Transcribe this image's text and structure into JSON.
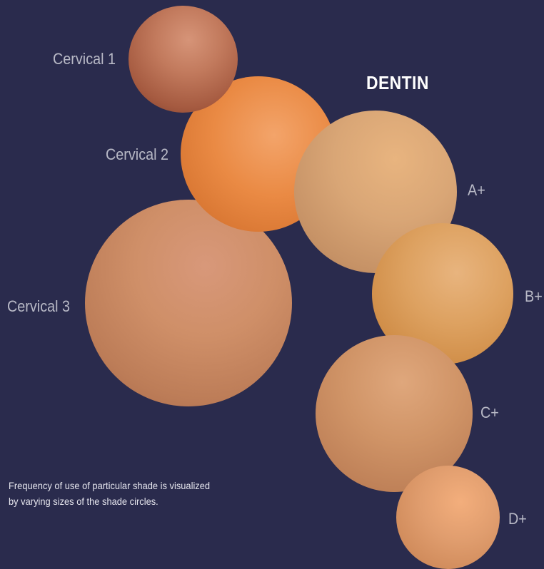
{
  "title": "DENTIN",
  "note": {
    "line1": "Frequency of use of particular shade is visualized",
    "line2": "by varying sizes of the shade circles."
  },
  "shades": [
    {
      "label": "Cervical 1",
      "color": "#b86a50"
    },
    {
      "label": "Cervical 2",
      "color": "#ea8a44"
    },
    {
      "label": "Cervical 3",
      "color": "#cf8f68"
    },
    {
      "label": "A+",
      "color": "#d9a676"
    },
    {
      "label": "B+",
      "color": "#dd9e58"
    },
    {
      "label": "C+",
      "color": "#d09467"
    },
    {
      "label": "D+",
      "color": "#e09d6e"
    }
  ]
}
